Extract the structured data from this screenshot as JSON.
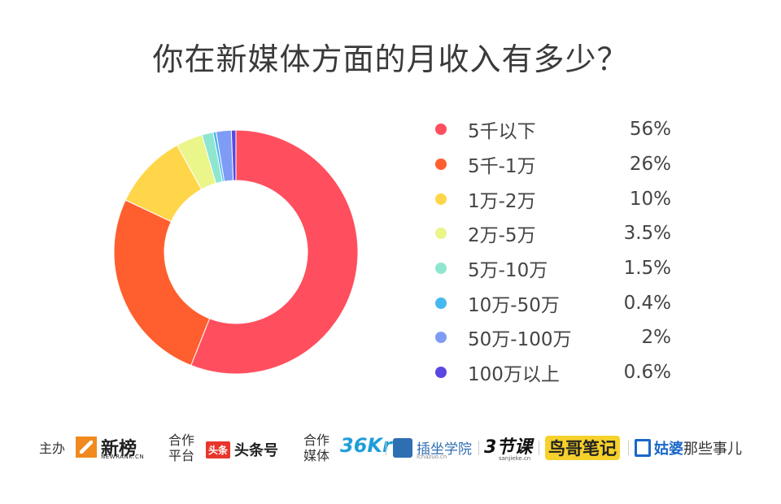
{
  "chart_data": {
    "type": "pie",
    "subtype": "donut",
    "title": "你在新媒体方面的月收入有多少？",
    "categories": [
      "5千以下",
      "5千-1万",
      "1万-2万",
      "2万-5万",
      "5万-10万",
      "10万-50万",
      "50万-100万",
      "100万以上"
    ],
    "values": [
      56,
      26,
      10,
      3.5,
      1.5,
      0.4,
      2,
      0.6
    ],
    "value_labels": [
      "56%",
      "26%",
      "10%",
      "3.5%",
      "1.5%",
      "0.4%",
      "2%",
      "0.6%"
    ],
    "colors": [
      "#ff4f5e",
      "#ff5f2e",
      "#ffd64a",
      "#eaf58a",
      "#8fe6d0",
      "#46b8f0",
      "#7e9cf5",
      "#5a46e0"
    ],
    "legend_position": "right"
  },
  "footer": {
    "host_label": "主办",
    "host_logo": {
      "name": "新榜",
      "sub": "NEWRANK.CN"
    },
    "platform_label_1": "合作",
    "platform_label_2": "平台",
    "platform_logo": {
      "badge": "头条",
      "name": "头条号"
    },
    "media_label_1": "合作",
    "media_label_2": "媒体",
    "media_logos": {
      "kr36": "36Kr",
      "chazuo": {
        "name": "插坐学院",
        "sub": "ichazuo.cn"
      },
      "jieke": {
        "name": "3节课",
        "sub": "sanjieke.cn"
      },
      "niaoge": "鸟哥笔记",
      "gupo": {
        "name": "姑婆",
        "rest": "那些事儿"
      }
    }
  }
}
